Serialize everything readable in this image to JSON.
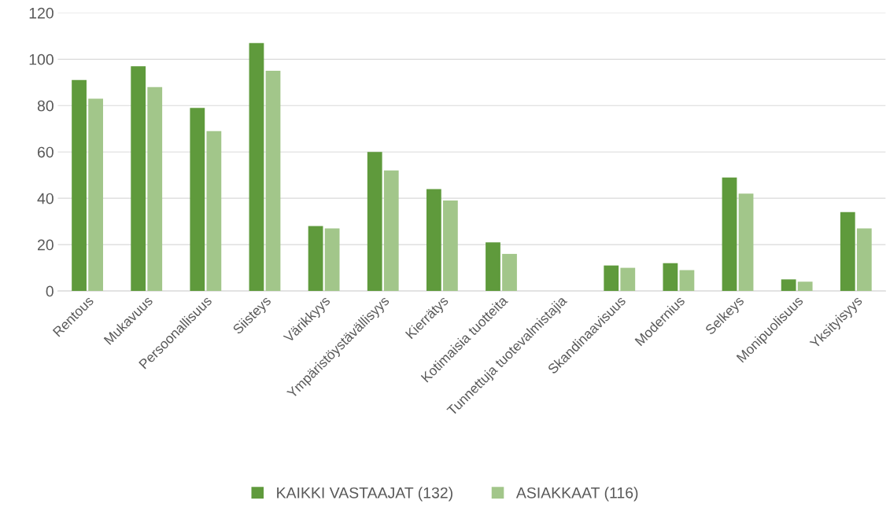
{
  "chart_data": {
    "type": "bar",
    "categories": [
      "Rentous",
      "Mukavuus",
      "Persoonallisuus",
      "Siisteys",
      "Värikkyys",
      "Ympäristöystävällisyys",
      "Kierrätys",
      "Kotimaisia tuotteita",
      "Tunnettuja tuotevalmistajia",
      "Skandinaavisuus",
      "Modernius",
      "Selkeys",
      "Monipuolisuus",
      "Yksityisyys"
    ],
    "series": [
      {
        "name": "KAIKKI VASTAAJAT (132)",
        "color": "#5f9a3c",
        "values": [
          91,
          97,
          79,
          107,
          28,
          60,
          44,
          21,
          0,
          11,
          12,
          49,
          5,
          34
        ]
      },
      {
        "name": "ASIAKKAAT (116)",
        "color": "#a2c68a",
        "values": [
          83,
          88,
          69,
          95,
          27,
          52,
          39,
          16,
          0,
          10,
          9,
          42,
          4,
          27
        ]
      }
    ],
    "ylim": [
      0,
      120
    ],
    "yticks": [
      0,
      20,
      40,
      60,
      80,
      100,
      120
    ],
    "grid": "y",
    "legend": "bottom"
  }
}
